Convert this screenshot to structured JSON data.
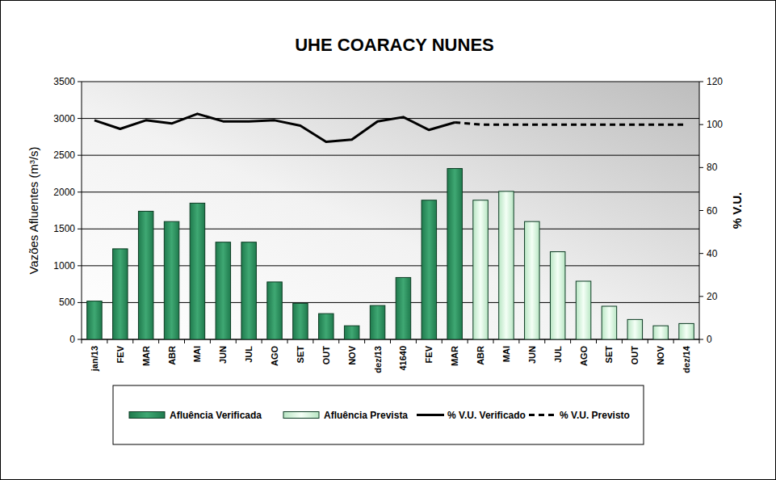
{
  "chart_data": {
    "type": "bar",
    "title": "UHE COARACY NUNES",
    "y_label": "Vazões Afluentes (m³/s)",
    "y2_label": "% V.U.",
    "categories": [
      "jan/13",
      "FEV",
      "MAR",
      "ABR",
      "MAI",
      "JUN",
      "JUL",
      "AGO",
      "SET",
      "OUT",
      "NOV",
      "dez/13",
      "41640",
      "FEV",
      "MAR",
      "ABR",
      "MAI",
      "JUN",
      "JUL",
      "AGO",
      "SET",
      "OUT",
      "NOV",
      "dez/14"
    ],
    "ylim": [
      0,
      3500
    ],
    "yticks": [
      0,
      500,
      1000,
      1500,
      2000,
      2500,
      3000,
      3500
    ],
    "y2lim": [
      0,
      120
    ],
    "y2ticks": [
      0,
      20,
      40,
      60,
      80,
      100,
      120
    ],
    "grid": true,
    "legend": "bottom",
    "series": [
      {
        "name": "Afluência Verificada",
        "type": "bar",
        "color": "#1f7a4d",
        "values": [
          520,
          1230,
          1740,
          1600,
          1850,
          1320,
          1320,
          780,
          490,
          350,
          185,
          460,
          840,
          1890,
          2320,
          null,
          null,
          null,
          null,
          null,
          null,
          null,
          null,
          null
        ]
      },
      {
        "name": "Afluência Prevista",
        "type": "bar",
        "color": "#b9e6c4",
        "values": [
          null,
          null,
          null,
          null,
          null,
          null,
          null,
          null,
          null,
          null,
          null,
          null,
          null,
          null,
          null,
          1890,
          2010,
          1600,
          1190,
          790,
          450,
          270,
          185,
          215
        ]
      },
      {
        "name": "% V.U. Verificado",
        "type": "line",
        "axis": "y2",
        "color": "#000000",
        "line_style": "solid",
        "values": [
          102,
          98,
          102,
          100.5,
          105,
          101.5,
          101.5,
          102,
          99.5,
          92,
          93,
          101.5,
          103.5,
          97.5,
          101,
          null,
          null,
          null,
          null,
          null,
          null,
          null,
          null,
          null
        ]
      },
      {
        "name": "% V.U. Previsto",
        "type": "line",
        "axis": "y2",
        "color": "#000000",
        "line_style": "dashed",
        "values": [
          null,
          null,
          null,
          null,
          null,
          null,
          null,
          null,
          null,
          null,
          null,
          null,
          null,
          null,
          101,
          100,
          100,
          100,
          100,
          100,
          100,
          100,
          100,
          100
        ]
      }
    ]
  }
}
